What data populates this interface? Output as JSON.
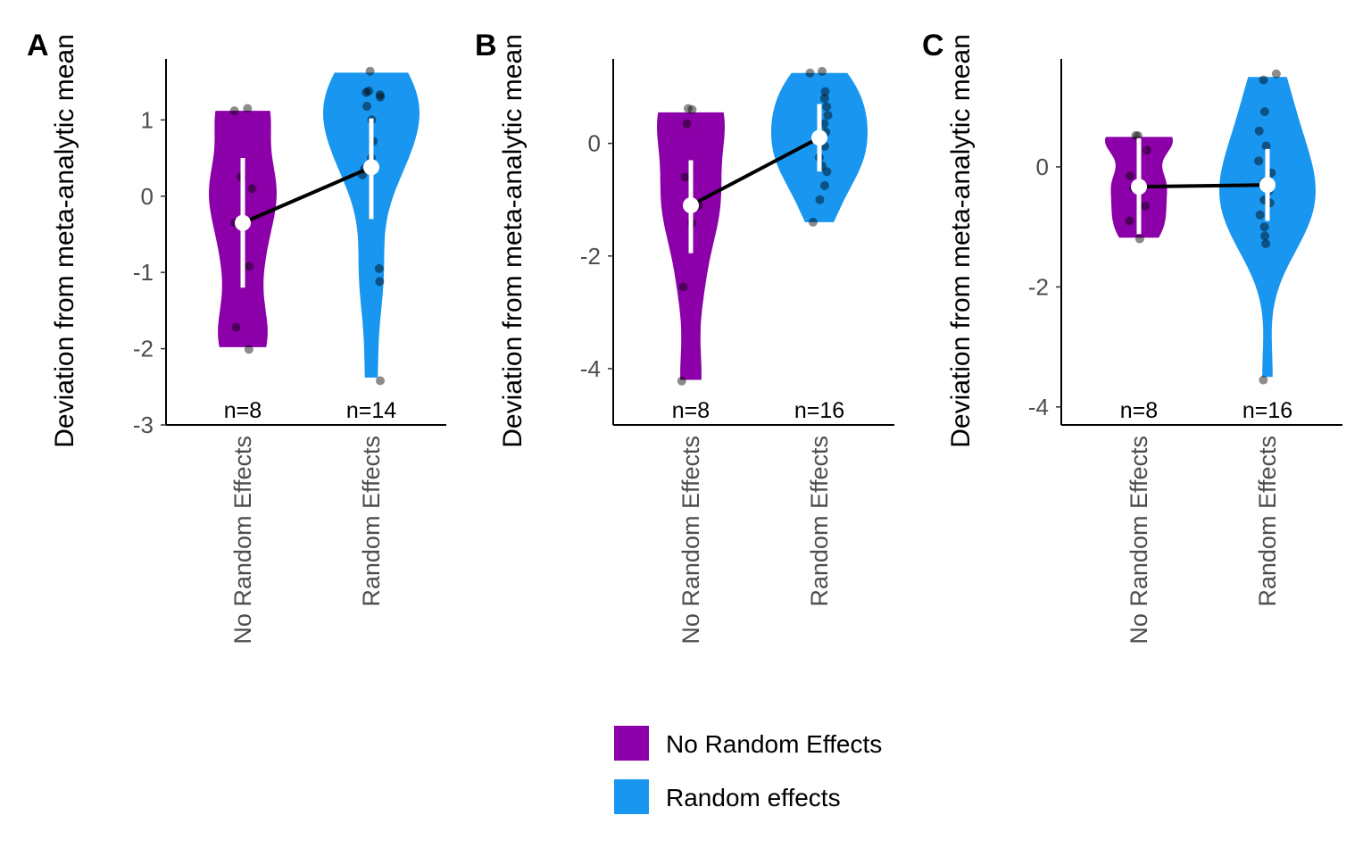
{
  "chart_data": [
    {
      "type": "violin",
      "panel": "A",
      "ylabel": "Deviation from meta-analytic mean",
      "categories": [
        "No Random Effects",
        "Random Effects"
      ],
      "yticks": [
        -3,
        -2,
        -1,
        0,
        1
      ],
      "ylim": [
        -3.0,
        1.8
      ],
      "groups": [
        {
          "name": "No Random Effects",
          "n_label": "n=8",
          "color": "#8B00A8",
          "range": [
            -1.98,
            1.12
          ],
          "points": [
            1.15,
            1.12,
            0.25,
            -0.92,
            -1.72,
            -2.01,
            -0.35,
            0.1
          ],
          "mean": -0.35,
          "interval": [
            -1.2,
            0.5
          ]
        },
        {
          "name": "Random Effects",
          "n_label": "n=14",
          "color": "#1996F0",
          "range": [
            -2.38,
            1.62
          ],
          "points": [
            1.64,
            1.36,
            1.38,
            1.33,
            1.3,
            1.18,
            0.72,
            0.36,
            0.28,
            -0.95,
            -1.12,
            -2.42,
            1.0,
            0.5
          ],
          "mean": 0.38,
          "interval": [
            -0.3,
            1.02
          ]
        }
      ]
    },
    {
      "type": "violin",
      "panel": "B",
      "ylabel": "Deviation from meta-analytic mean",
      "categories": [
        "No Random Effects",
        "Random Effects"
      ],
      "yticks": [
        -4,
        -2,
        0
      ],
      "ylim": [
        -5.0,
        1.5
      ],
      "groups": [
        {
          "name": "No Random Effects",
          "n_label": "n=8",
          "color": "#8B00A8",
          "range": [
            -4.2,
            0.55
          ],
          "points": [
            0.6,
            0.62,
            0.35,
            -1.42,
            -2.55,
            -4.22,
            -1.1,
            -0.6
          ],
          "mean": -1.1,
          "interval": [
            -1.95,
            -0.3
          ]
        },
        {
          "name": "Random Effects",
          "n_label": "n=16",
          "color": "#1996F0",
          "range": [
            -1.4,
            1.25
          ],
          "points": [
            1.28,
            1.25,
            0.92,
            0.8,
            0.5,
            0.2,
            0.05,
            -0.05,
            -0.25,
            -0.5,
            -0.75,
            -1.0,
            -1.4,
            0.35,
            -0.4,
            0.65
          ],
          "mean": 0.1,
          "interval": [
            -0.5,
            0.7
          ]
        }
      ]
    },
    {
      "type": "violin",
      "panel": "C",
      "ylabel": "Deviation from meta-analytic mean",
      "categories": [
        "No Random Effects",
        "Random Effects"
      ],
      "yticks": [
        -4,
        -2,
        0
      ],
      "ylim": [
        -4.3,
        1.8
      ],
      "groups": [
        {
          "name": "No Random Effects",
          "n_label": "n=8",
          "color": "#8B00A8",
          "range": [
            -1.18,
            0.5
          ],
          "points": [
            0.52,
            0.52,
            0.28,
            -0.15,
            -0.65,
            -0.9,
            -1.2,
            -0.35
          ],
          "mean": -0.33,
          "interval": [
            -1.12,
            0.48
          ]
        },
        {
          "name": "Random Effects",
          "n_label": "n=16",
          "color": "#1996F0",
          "range": [
            -3.5,
            1.5
          ],
          "points": [
            1.55,
            1.45,
            0.92,
            0.6,
            0.35,
            0.1,
            -0.1,
            -0.25,
            -0.4,
            -0.55,
            -0.8,
            -1.0,
            -1.15,
            -1.28,
            -3.55,
            -0.6
          ],
          "mean": -0.3,
          "interval": [
            -0.9,
            0.3
          ]
        }
      ]
    }
  ],
  "legend": [
    {
      "label": "No Random Effects",
      "color": "#8B00A8"
    },
    {
      "label": "Random effects",
      "color": "#1996F0"
    }
  ],
  "colors": {
    "no_random": "#8B00A8",
    "random": "#1996F0",
    "mean_line": "#000000",
    "interval": "#ffffff",
    "points": "#333333"
  }
}
